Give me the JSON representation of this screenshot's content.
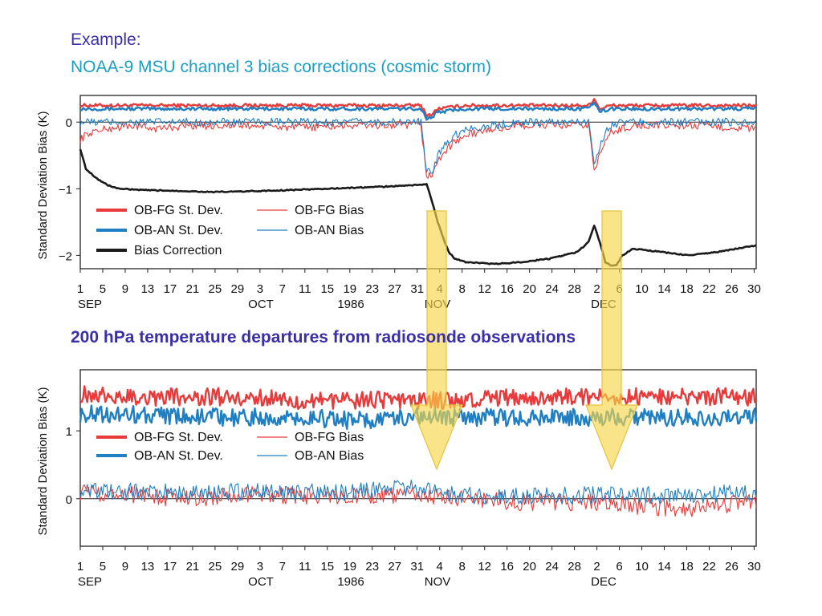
{
  "slide": {
    "example_label": "Example:",
    "subtitle": "NOAA-9 MSU channel 3 bias corrections (cosmic storm)",
    "second_heading": "200 hPa temperature departures from radiosonde observations"
  },
  "colors": {
    "obfg": "#e83a3a",
    "oban": "#1f7fc2",
    "bias_correction": "#1a1a1a",
    "arrow_fill": "#f7d64a",
    "heading": "#3a2fa8",
    "subtitle": "#1a9fc4"
  },
  "x_axis": {
    "tick_labels": [
      "1",
      "5",
      "9",
      "13",
      "17",
      "21",
      "25",
      "29",
      "3",
      "7",
      "11",
      "15",
      "19",
      "23",
      "27",
      "31",
      "4",
      "8",
      "12",
      "16",
      "20",
      "24",
      "28",
      "2",
      "6",
      "10",
      "14",
      "18",
      "22",
      "26",
      "30"
    ],
    "months": [
      "SEP",
      "OCT",
      "1986",
      "NOV",
      "DEC"
    ]
  },
  "chart_data": [
    {
      "type": "line",
      "title": "",
      "ylabel": "Standard Deviation Bias (K)",
      "xlabel": "",
      "x_range_days": [
        1,
        122
      ],
      "ylim": [
        -2.2,
        0.4
      ],
      "yticks": [
        "0",
        "−1",
        "−2"
      ],
      "ytick_values": [
        0,
        -1,
        -2
      ],
      "legend": {
        "placement": "lower-left",
        "entries": [
          "OB-FG St. Dev.",
          "OB-FG Bias",
          "OB-AN St. Dev.",
          "OB-AN Bias",
          "Bias Correction"
        ]
      },
      "series": [
        {
          "name": "OB-FG St. Dev.",
          "style": "thick",
          "color": "#e83a3a",
          "x": [
            1,
            10,
            20,
            30,
            40,
            50,
            60,
            62,
            63,
            64,
            65,
            70,
            80,
            92,
            93,
            94,
            96,
            100,
            110,
            122
          ],
          "y": [
            0.25,
            0.25,
            0.25,
            0.25,
            0.25,
            0.25,
            0.25,
            0.25,
            0.1,
            0.12,
            0.2,
            0.25,
            0.25,
            0.25,
            0.35,
            0.2,
            0.25,
            0.25,
            0.25,
            0.25
          ]
        },
        {
          "name": "OB-AN St. Dev.",
          "style": "thick",
          "color": "#1f7fc2",
          "x": [
            1,
            10,
            20,
            30,
            40,
            50,
            60,
            62,
            63,
            64,
            65,
            70,
            80,
            92,
            93,
            94,
            96,
            100,
            110,
            122
          ],
          "y": [
            0.2,
            0.2,
            0.2,
            0.2,
            0.2,
            0.2,
            0.2,
            0.2,
            0.05,
            0.08,
            0.15,
            0.2,
            0.2,
            0.2,
            0.3,
            0.15,
            0.2,
            0.2,
            0.2,
            0.2
          ]
        },
        {
          "name": "OB-FG Bias",
          "style": "thin",
          "color": "#e83a3a",
          "x": [
            1,
            3,
            6,
            10,
            15,
            20,
            30,
            40,
            50,
            60,
            62,
            63,
            64,
            65,
            66,
            68,
            70,
            75,
            80,
            85,
            92,
            93,
            94,
            95,
            96,
            98,
            100,
            110,
            122
          ],
          "y": [
            -0.25,
            -0.15,
            -0.1,
            -0.05,
            -0.1,
            -0.05,
            -0.05,
            -0.08,
            -0.05,
            -0.05,
            -0.05,
            -0.8,
            -0.8,
            -0.6,
            -0.45,
            -0.3,
            -0.2,
            -0.1,
            -0.05,
            -0.05,
            -0.05,
            -0.7,
            -0.5,
            -0.3,
            -0.15,
            -0.1,
            -0.05,
            -0.05,
            -0.1
          ]
        },
        {
          "name": "OB-AN Bias",
          "style": "thin",
          "color": "#1f7fc2",
          "x": [
            1,
            10,
            20,
            30,
            40,
            50,
            60,
            62,
            63,
            64,
            65,
            66,
            68,
            70,
            75,
            80,
            92,
            93,
            94,
            95,
            96,
            98,
            100,
            110,
            122
          ],
          "y": [
            0,
            0,
            0,
            0,
            0,
            0,
            0,
            0,
            -0.75,
            -0.75,
            -0.5,
            -0.35,
            -0.2,
            -0.1,
            -0.05,
            0,
            0,
            -0.6,
            -0.35,
            -0.15,
            -0.05,
            0,
            0,
            0,
            0
          ]
        },
        {
          "name": "Bias Correction",
          "style": "thick",
          "color": "#1a1a1a",
          "x": [
            1,
            2,
            4,
            6,
            8,
            12,
            18,
            25,
            35,
            45,
            55,
            60,
            63,
            64,
            65,
            66,
            67,
            68,
            70,
            75,
            80,
            85,
            90,
            92,
            93,
            94,
            95,
            96,
            97,
            98,
            100,
            105,
            110,
            115,
            122
          ],
          "y": [
            -0.4,
            -0.7,
            -0.85,
            -0.95,
            -1.0,
            -1.02,
            -1.03,
            -1.05,
            -1.03,
            -1.0,
            -0.97,
            -0.95,
            -0.93,
            -1.2,
            -1.5,
            -1.75,
            -1.95,
            -2.05,
            -2.1,
            -2.13,
            -2.1,
            -2.05,
            -1.95,
            -1.8,
            -1.55,
            -1.8,
            -2.1,
            -2.15,
            -2.15,
            -2.0,
            -1.9,
            -1.95,
            -2.0,
            -1.95,
            -1.85
          ]
        }
      ]
    },
    {
      "type": "line",
      "title": "",
      "ylabel": "Standard Deviation Bias (K)",
      "xlabel": "",
      "x_range_days": [
        1,
        122
      ],
      "ylim": [
        -0.7,
        1.9
      ],
      "yticks": [
        "0",
        "1"
      ],
      "ytick_values": [
        0,
        1
      ],
      "legend": {
        "placement": "upper-left",
        "entries": [
          "OB-FG St. Dev.",
          "OB-FG Bias",
          "OB-AN St. Dev.",
          "OB-AN Bias"
        ]
      },
      "series": [
        {
          "name": "OB-FG St. Dev.",
          "style": "thick",
          "color": "#e83a3a",
          "x": [
            1,
            10,
            20,
            30,
            40,
            50,
            60,
            70,
            80,
            90,
            100,
            110,
            122
          ],
          "y": [
            1.55,
            1.5,
            1.5,
            1.5,
            1.45,
            1.45,
            1.45,
            1.45,
            1.5,
            1.5,
            1.5,
            1.5,
            1.5
          ]
        },
        {
          "name": "OB-AN St. Dev.",
          "style": "thick",
          "color": "#1f7fc2",
          "x": [
            1,
            10,
            20,
            30,
            40,
            50,
            60,
            70,
            80,
            90,
            100,
            110,
            122
          ],
          "y": [
            1.25,
            1.25,
            1.2,
            1.2,
            1.2,
            1.15,
            1.2,
            1.2,
            1.2,
            1.2,
            1.2,
            1.2,
            1.2
          ]
        },
        {
          "name": "OB-FG Bias",
          "style": "thin",
          "color": "#e83a3a",
          "x": [
            1,
            10,
            20,
            30,
            40,
            50,
            60,
            70,
            80,
            90,
            100,
            110,
            122
          ],
          "y": [
            0.1,
            0.05,
            0.0,
            0.05,
            0.05,
            0.05,
            0.05,
            0.0,
            -0.05,
            -0.05,
            -0.1,
            -0.15,
            -0.05
          ]
        },
        {
          "name": "OB-AN Bias",
          "style": "thin",
          "color": "#1f7fc2",
          "x": [
            1,
            10,
            20,
            30,
            40,
            50,
            60,
            70,
            80,
            90,
            100,
            110,
            122
          ],
          "y": [
            0.15,
            0.1,
            0.1,
            0.1,
            0.1,
            0.1,
            0.15,
            0.05,
            0.05,
            0.05,
            0.05,
            0.05,
            0.1
          ]
        }
      ]
    }
  ]
}
